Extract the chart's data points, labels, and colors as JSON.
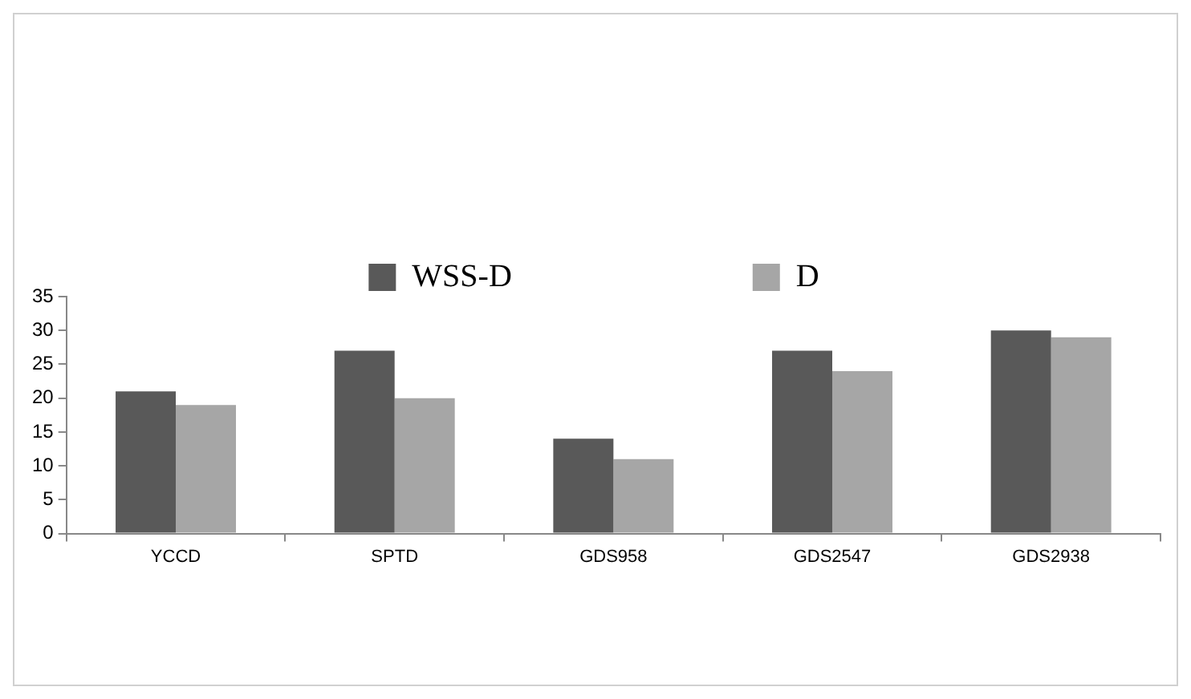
{
  "chart_data": {
    "type": "bar",
    "categories": [
      "YCCD",
      "SPTD",
      "GDS958",
      "GDS2547",
      "GDS2938"
    ],
    "series": [
      {
        "name": "WSS-D",
        "color": "#595959",
        "values": [
          21,
          27,
          14,
          27,
          30
        ]
      },
      {
        "name": "D",
        "color": "#a6a6a6",
        "values": [
          19,
          20,
          11,
          24,
          29
        ]
      }
    ],
    "ylim": [
      0,
      35
    ],
    "yticks": [
      0,
      5,
      10,
      15,
      20,
      25,
      30,
      35
    ],
    "grid": false,
    "legend": "top"
  }
}
